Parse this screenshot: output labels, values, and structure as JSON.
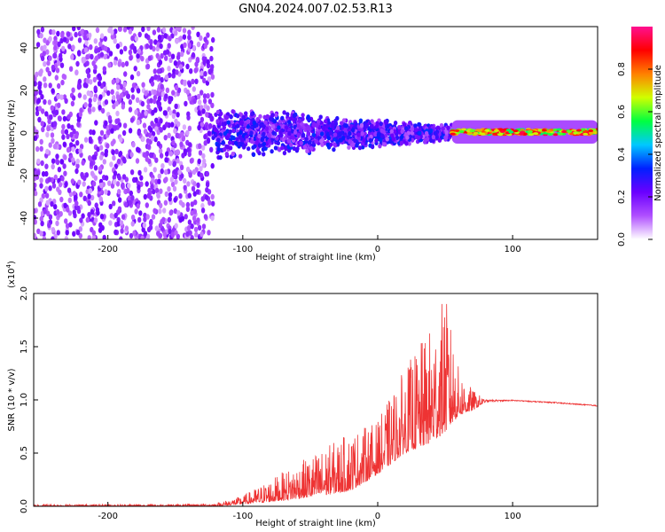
{
  "title": "GN04.2024.007.02.53.R13",
  "chart_data": [
    {
      "type": "heatmap",
      "title": "GN04.2024.007.02.53.R13",
      "xlabel": "Height of straight line (km)",
      "ylabel": "Frequency (Hz)",
      "xlim": [
        -255,
        163
      ],
      "ylim": [
        -50,
        50
      ],
      "x_ticks": [
        -200,
        -100,
        0,
        100
      ],
      "x_tick_labels": [
        "-200",
        "-100",
        "0",
        "100"
      ],
      "y_ticks": [
        -40,
        -20,
        0,
        20,
        40
      ],
      "y_tick_labels": [
        "-40",
        "-20",
        "0",
        "20",
        "40"
      ],
      "colorbar": {
        "label": "Normalized spectral amplitude",
        "range": [
          0,
          1
        ],
        "ticks": [
          0.0,
          0.2,
          0.4,
          0.6,
          0.8
        ],
        "tick_labels": [
          "0.0",
          "0.2",
          "0.4",
          "0.6",
          "0.8"
        ],
        "colors": [
          "#ffffff",
          "#b050ff",
          "#6a00ff",
          "#0020ff",
          "#00c8ff",
          "#00ff40",
          "#d0ff00",
          "#ff8000",
          "#ff0000",
          "#ff1090"
        ]
      },
      "regions": [
        {
          "name": "noise",
          "x_range": [
            -255,
            -122
          ],
          "freq_range": [
            -50,
            50
          ],
          "amplitude": [
            0.05,
            0.22
          ]
        },
        {
          "name": "band",
          "x_range": [
            -122,
            55
          ],
          "freq_center": 0,
          "freq_halfwidth_at_x": [
            [
              -120,
              12
            ],
            [
              -60,
              10
            ],
            [
              0,
              7
            ],
            [
              50,
              4
            ]
          ],
          "amplitude": [
            0.1,
            0.35
          ]
        },
        {
          "name": "carrier",
          "x_range": [
            55,
            163
          ],
          "freq_center": 0.5,
          "freq_halfwidth": 2.5,
          "amplitude": [
            0.5,
            0.95
          ]
        }
      ],
      "grid": false
    },
    {
      "type": "line",
      "xlabel": "Height of straight line (km)",
      "ylabel": "SNR (10 * v/v)",
      "y_multiplier": "(x10",
      "y_multiplier_exp": "4",
      "y_multiplier_close": ")",
      "xlim": [
        -255,
        163
      ],
      "ylim": [
        0,
        2
      ],
      "x_ticks": [
        -200,
        -100,
        0,
        100
      ],
      "x_tick_labels": [
        "-200",
        "-100",
        "0",
        "100"
      ],
      "y_ticks": [
        0,
        0.5,
        1.0,
        1.5,
        2.0
      ],
      "y_tick_labels": [
        "0.0",
        "0.5",
        "1.0",
        "1.5",
        "2.0"
      ],
      "series": [
        {
          "color": "#ee3333",
          "envelope_x": [
            -255,
            -150,
            -120,
            -100,
            -80,
            -60,
            -40,
            -20,
            0,
            20,
            40,
            50,
            60,
            70,
            80,
            100,
            130,
            163
          ],
          "envelope_y": [
            0.02,
            0.02,
            0.03,
            0.1,
            0.25,
            0.4,
            0.55,
            0.7,
            0.8,
            1.3,
            1.7,
            2.0,
            1.3,
            1.1,
            1.0,
            1.0,
            0.98,
            0.95
          ],
          "baseline_y": [
            0.0,
            0.0,
            0.0,
            0.02,
            0.04,
            0.07,
            0.1,
            0.15,
            0.3,
            0.5,
            0.6,
            0.7,
            0.85,
            0.9,
            0.98,
            0.99,
            0.97,
            0.94
          ]
        }
      ],
      "grid": false
    }
  ]
}
